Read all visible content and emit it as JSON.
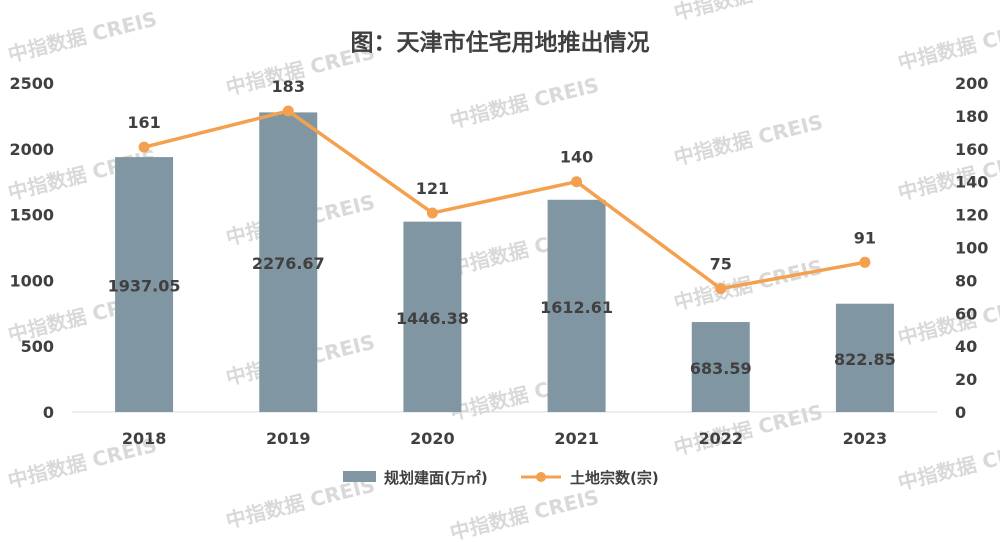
{
  "watermark": "中指数据 CREIS",
  "chart_data": {
    "type": "bar",
    "title": "图：天津市住宅用地推出情况",
    "categories": [
      "2018",
      "2019",
      "2020",
      "2021",
      "2022",
      "2023"
    ],
    "series": [
      {
        "name": "规划建面(万㎡)",
        "type": "bar",
        "axis": "left",
        "values": [
          1937.05,
          2276.67,
          1446.38,
          1612.61,
          683.59,
          822.85
        ],
        "color": "#8096a2"
      },
      {
        "name": "土地宗数(宗)",
        "type": "line",
        "axis": "right",
        "values": [
          161,
          183,
          121,
          140,
          75,
          91
        ],
        "color": "#f4a14f"
      }
    ],
    "y_left": {
      "ylim": [
        0,
        2500
      ],
      "ticks": [
        "0",
        "500",
        "1000",
        "1500",
        "2000",
        "2500"
      ]
    },
    "y_right": {
      "ylim": [
        0,
        200
      ],
      "ticks": [
        "0",
        "20",
        "40",
        "60",
        "80",
        "100",
        "120",
        "140",
        "160",
        "180",
        "200"
      ]
    },
    "grid": false,
    "legend_position": "bottom"
  }
}
